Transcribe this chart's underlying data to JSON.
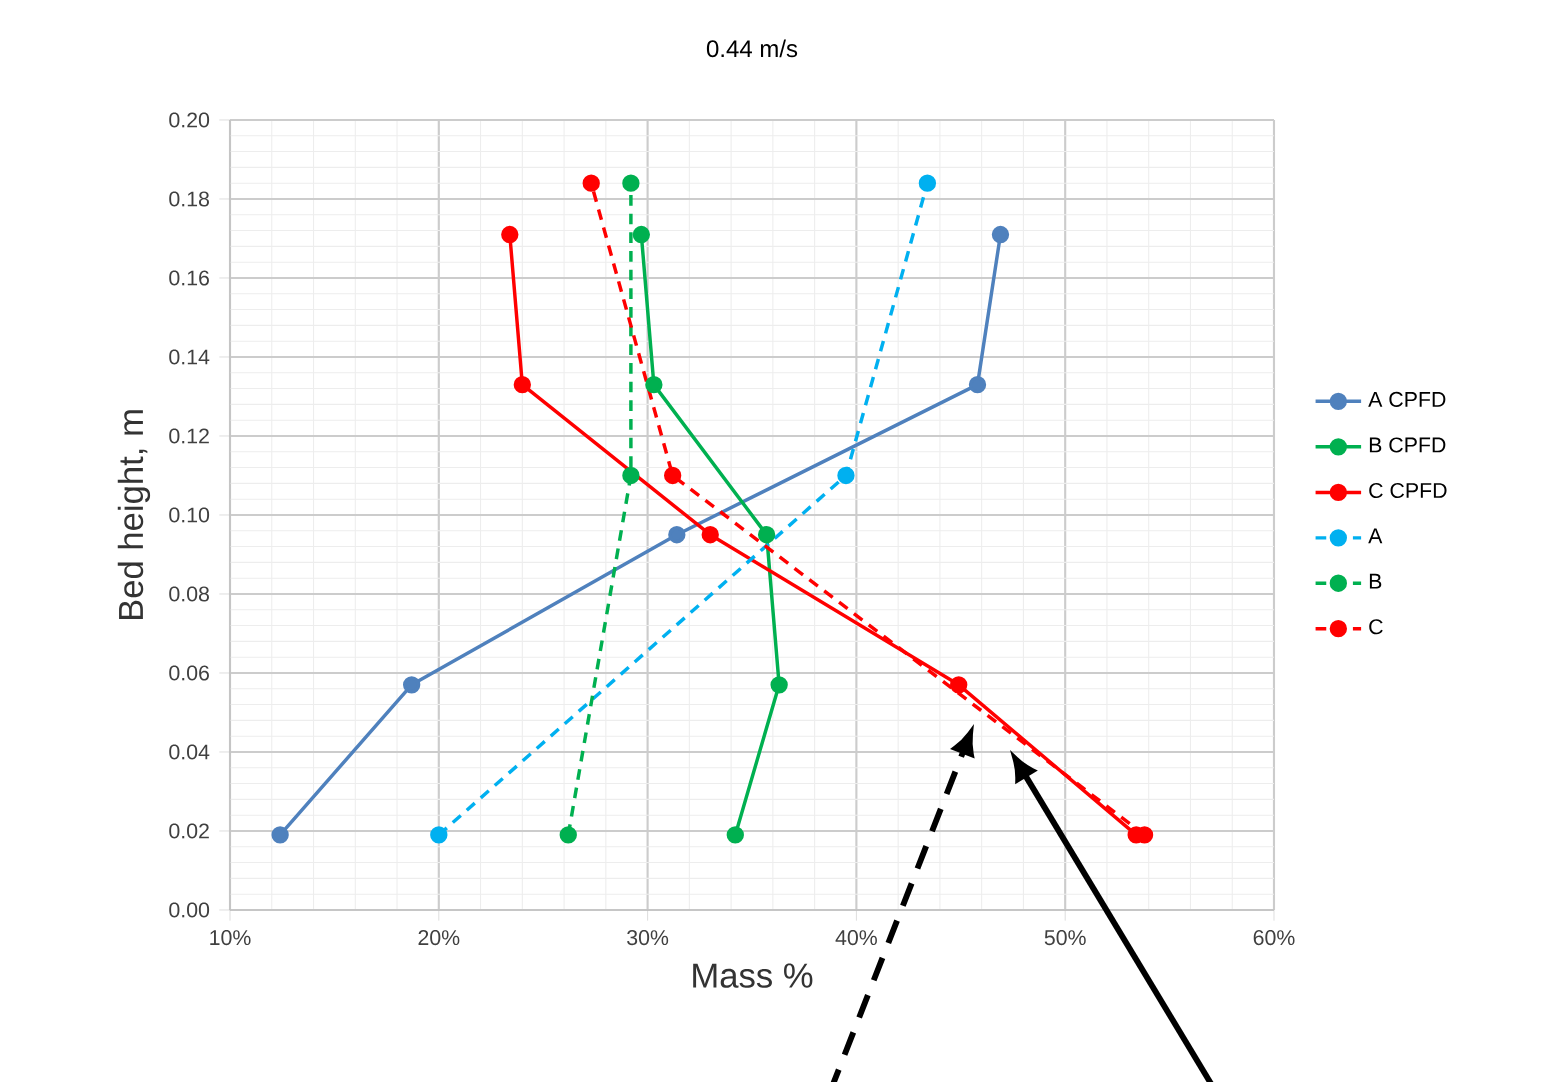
{
  "chart_data": {
    "type": "line",
    "title": "0.44 m/s",
    "xlabel": "Mass %",
    "ylabel": "Bed height, m",
    "xlim": [
      10,
      60
    ],
    "xticks": [
      {
        "value": 10,
        "label": "10%"
      },
      {
        "value": 20,
        "label": "20%"
      },
      {
        "value": 30,
        "label": "30%"
      },
      {
        "value": 40,
        "label": "40%"
      },
      {
        "value": 50,
        "label": "50%"
      },
      {
        "value": 60,
        "label": "60%"
      }
    ],
    "ylim": [
      0,
      0.2
    ],
    "yticks": [
      {
        "value": 0,
        "label": "0.00"
      },
      {
        "value": 0.02,
        "label": "0.02"
      },
      {
        "value": 0.04,
        "label": "0.04"
      },
      {
        "value": 0.06,
        "label": "0.06"
      },
      {
        "value": 0.08,
        "label": "0.08"
      },
      {
        "value": 0.1,
        "label": "0.10"
      },
      {
        "value": 0.12,
        "label": "0.12"
      },
      {
        "value": 0.14,
        "label": "0.14"
      },
      {
        "value": 0.16,
        "label": "0.16"
      },
      {
        "value": 0.18,
        "label": "0.18"
      },
      {
        "value": 0.2,
        "label": "0.20"
      }
    ],
    "grid": true,
    "legend": "right",
    "marker": "circle",
    "series": [
      {
        "name": "A CPFD",
        "color": "#4f81bd",
        "line_style": "solid",
        "x": [
          12.4,
          18.7,
          31.4,
          45.8,
          46.9
        ],
        "values": [
          0.019,
          0.057,
          0.095,
          0.133,
          0.171
        ]
      },
      {
        "name": "B CPFD",
        "color": "#00b050",
        "line_style": "solid",
        "x": [
          34.2,
          36.3,
          35.7,
          30.3,
          29.7
        ],
        "values": [
          0.019,
          0.057,
          0.095,
          0.133,
          0.171
        ]
      },
      {
        "name": "C CPFD",
        "color": "#ff0000",
        "line_style": "solid",
        "x": [
          53.4,
          44.9,
          33.0,
          24.0,
          23.4
        ],
        "values": [
          0.019,
          0.057,
          0.095,
          0.133,
          0.171
        ]
      },
      {
        "name": "A",
        "color": "#00b0f0",
        "line_style": "dashed",
        "x": [
          20.0,
          39.5,
          43.4
        ],
        "values": [
          0.019,
          0.11,
          0.184
        ]
      },
      {
        "name": "B",
        "color": "#00b050",
        "line_style": "dashed",
        "x": [
          26.2,
          29.2,
          29.2
        ],
        "values": [
          0.019,
          0.11,
          0.184
        ]
      },
      {
        "name": "C",
        "color": "#ff0000",
        "line_style": "dashed",
        "x": [
          53.8,
          31.2,
          27.3
        ],
        "values": [
          0.019,
          0.11,
          0.184
        ]
      }
    ]
  }
}
